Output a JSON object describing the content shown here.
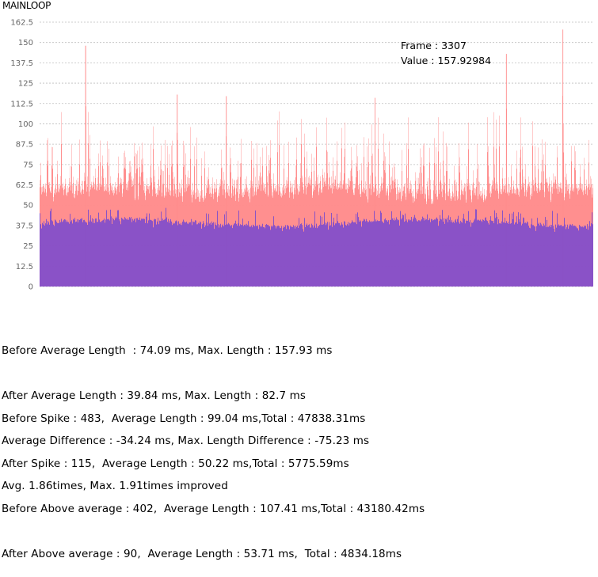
{
  "chart_data": {
    "type": "area",
    "title": "MAINLOOP",
    "ylim": [
      0,
      162.5
    ],
    "y_ticks": [
      "0",
      "12.5",
      "25",
      "37.5",
      "50",
      "62.5",
      "75",
      "87.5",
      "100",
      "112.5",
      "125",
      "137.5",
      "150",
      "162.5"
    ],
    "grid": true,
    "frame_count": 3500,
    "series": [
      {
        "color": "#ff8c8c",
        "average": 74.09,
        "max": 157.93,
        "peaks": [
          {
            "frame": 290,
            "value": 148
          },
          {
            "frame": 870,
            "value": 118
          },
          {
            "frame": 1180,
            "value": 117
          },
          {
            "frame": 2120,
            "value": 116
          },
          {
            "frame": 2950,
            "value": 143
          },
          {
            "frame": 3307,
            "value": 157.92984
          }
        ]
      },
      {
        "color": "#8650c8",
        "average": 39.84,
        "max": 82.7
      }
    ],
    "tooltip": {
      "frame_label": "Frame : 3307",
      "value_label": "Value : 157.92984"
    }
  },
  "stats": {
    "group1": [
      "Before Average Length  : 74.09 ms, Max. Length : 157.93 ms",
      "After Average Length : 39.84 ms, Max. Length : 82.7 ms",
      "Average Difference : -34.24 ms, Max. Length Difference : -75.23 ms",
      "Avg. 1.86times, Max. 1.91times improved"
    ],
    "group2": [
      "Before Spike : 483,  Average Length : 99.04 ms,Total : 47838.31ms",
      "After Spike : 115,  Average Length : 50.22 ms,Total : 5775.59ms",
      "Before Above average : 402,  Average Length : 107.41 ms,Total : 43180.42ms",
      "After Above average : 90,  Average Length : 53.71 ms,  Total : 4834.18ms"
    ]
  }
}
